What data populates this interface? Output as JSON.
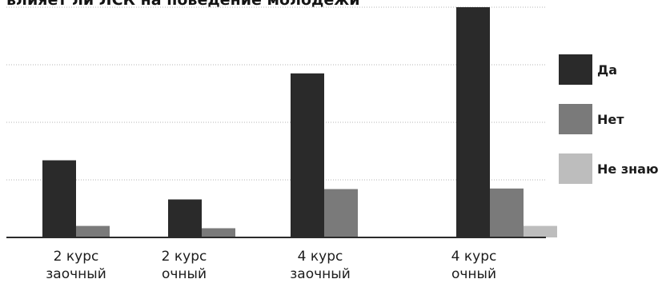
{
  "chart_data": {
    "type": "bar",
    "title": "влияет ли ЛСК на поведение молодежи",
    "categories": [
      {
        "line1": "2 курс",
        "line2": "заочный"
      },
      {
        "line1": "2 курс",
        "line2": "очный"
      },
      {
        "line1": "4 курс",
        "line2": "заочный"
      },
      {
        "line1": "4 курс",
        "line2": "очный"
      }
    ],
    "series": [
      {
        "name": "Да",
        "color": "#2a2a2a",
        "values": [
          13.4,
          6.6,
          28.5,
          40
        ]
      },
      {
        "name": "Нет",
        "color": "#7a7a7a",
        "values": [
          2,
          1.6,
          8.4,
          8.5
        ]
      },
      {
        "name": "Не знаю",
        "color": "#bdbdbd",
        "values": [
          0,
          0,
          0,
          2
        ]
      }
    ],
    "ylim": [
      0,
      40
    ],
    "grid": true,
    "legend_position": "right"
  }
}
